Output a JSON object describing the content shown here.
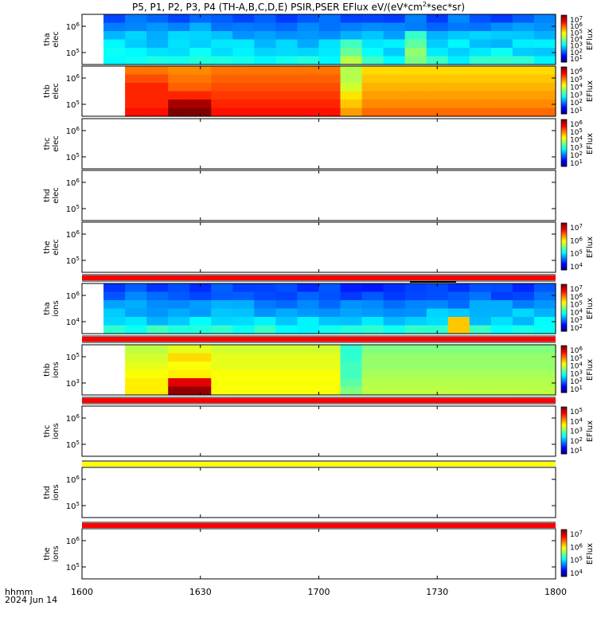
{
  "title": "P5, P1, P2, P3, P4 (TH-A,B,C,D,E) PSIR,PSER EFlux eV/(eV*cm",
  "title_sup": "2",
  "title_end": "*sec*sr)",
  "footer": {
    "line1": "hhmm",
    "line2": "2024 Jun 14"
  },
  "colorbar_label": "EFlux",
  "chart_data": {
    "type": "heatmap",
    "x_axis": {
      "ticks": [
        "1600",
        "1630",
        "1700",
        "1730",
        "1800"
      ]
    },
    "panels": [
      {
        "label_line1": "tha",
        "label_line2": "elec",
        "yticks": [
          "10^6",
          "10^5"
        ],
        "cbar": [
          "10^7",
          "10^6",
          "10^5",
          "10^4",
          "10^3",
          "10^2",
          "10^1"
        ],
        "data": "blue-cyan"
      },
      {
        "label_line1": "thb",
        "label_line2": "elec",
        "yticks": [
          "10^6",
          "10^5"
        ],
        "cbar": [
          "10^6",
          "10^5",
          "10^4",
          "10^3",
          "10^2",
          "10^1"
        ],
        "data": "orange-yellow"
      },
      {
        "label_line1": "thc",
        "label_line2": "elec",
        "yticks": [
          "10^6",
          "10^5"
        ],
        "cbar": [
          "10^6",
          "10^5",
          "10^4",
          "10^3",
          "10^2",
          "10^1"
        ],
        "data": "empty"
      },
      {
        "label_line1": "thd",
        "label_line2": "elec",
        "yticks": [
          "10^6",
          "10^5"
        ],
        "cbar": [],
        "data": "empty"
      },
      {
        "label_line1": "the",
        "label_line2": "elec",
        "yticks": [
          "10^6",
          "10^5"
        ],
        "cbar": [
          "10^7",
          "10^6",
          "10^5",
          "10^4"
        ],
        "data": "empty"
      },
      {
        "label_line1": "tha",
        "label_line2": "ions",
        "yticks": [
          "10^6",
          "10^4"
        ],
        "cbar": [
          "10^7",
          "10^6",
          "10^5",
          "10^4",
          "10^3",
          "10^2"
        ],
        "data": "blue-ions"
      },
      {
        "label_line1": "thb",
        "label_line2": "ions",
        "yticks": [
          "10^5",
          "10^3"
        ],
        "cbar": [
          "10^6",
          "10^5",
          "10^4",
          "10^3",
          "10^2",
          "10^1"
        ],
        "data": "green-ions"
      },
      {
        "label_line1": "thc",
        "label_line2": "ions",
        "yticks": [
          "10^6",
          "10^5"
        ],
        "cbar": [
          "10^5",
          "10^4",
          "10^3",
          "10^2",
          "10^1"
        ],
        "data": "empty"
      },
      {
        "label_line1": "thd",
        "label_line2": "ions",
        "yticks": [
          "10^6",
          "10^5"
        ],
        "cbar": [],
        "data": "empty"
      },
      {
        "label_line1": "the",
        "label_line2": "ions",
        "yticks": [
          "10^6",
          "10^5"
        ],
        "cbar": [
          "10^7",
          "10^6",
          "10^5",
          "10^4"
        ],
        "data": "empty"
      }
    ],
    "separator_strips": [
      {
        "after_panel": 5,
        "color": "#ff0000"
      },
      {
        "after_panel": 6,
        "color": "#ff0000"
      },
      {
        "after_panel": 7,
        "color": "#ff0000"
      },
      {
        "after_panel": 8,
        "color": "#ffff00"
      },
      {
        "after_panel": 9,
        "color": "#ff0000"
      }
    ]
  }
}
